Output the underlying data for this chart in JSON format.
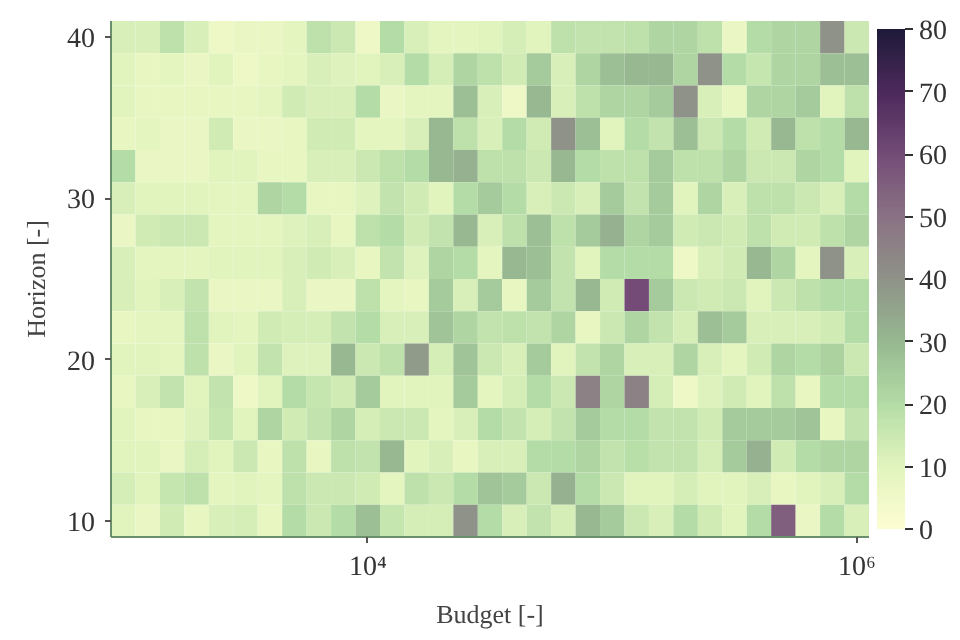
{
  "chart_data": {
    "type": "heatmap",
    "xlabel": "Budget [-]",
    "ylabel": "Horizon [-]",
    "log": "x",
    "x": [
      1000,
      1259,
      1585,
      1995,
      2512,
      3162,
      3981,
      5012,
      6310,
      7943,
      10000,
      12589,
      15849,
      19953,
      25119,
      31623,
      39811,
      50119,
      63096,
      79433,
      100000,
      125893,
      158489,
      199526,
      251189,
      316228,
      398107,
      501187,
      630957,
      794328,
      1000000
    ],
    "y": [
      40,
      38,
      36,
      34,
      32,
      30,
      28,
      26,
      24,
      22,
      20,
      18,
      16,
      14,
      12,
      10
    ],
    "cells": [
      [
        12,
        12,
        18,
        12,
        6,
        7,
        7,
        9,
        18,
        15,
        6,
        20,
        12,
        9,
        9,
        10,
        13,
        10,
        18,
        17,
        17,
        18,
        22,
        22,
        18,
        7,
        20,
        22,
        22,
        40,
        15
      ],
      [
        10,
        8,
        9,
        7,
        10,
        6,
        8,
        9,
        12,
        11,
        10,
        12,
        20,
        13,
        22,
        18,
        14,
        25,
        12,
        22,
        28,
        30,
        30,
        22,
        40,
        20,
        16,
        22,
        22,
        28,
        28
      ],
      [
        10,
        8,
        8,
        8,
        8,
        8,
        9,
        14,
        12,
        12,
        20,
        7,
        9,
        9,
        28,
        12,
        6,
        30,
        12,
        18,
        22,
        22,
        25,
        40,
        12,
        8,
        22,
        22,
        25,
        10,
        18
      ],
      [
        8,
        9,
        7,
        7,
        14,
        7,
        7,
        8,
        14,
        14,
        9,
        9,
        12,
        30,
        18,
        12,
        20,
        14,
        40,
        28,
        10,
        20,
        17,
        28,
        15,
        20,
        14,
        30,
        18,
        20,
        30
      ],
      [
        20,
        7,
        7,
        7,
        10,
        10,
        8,
        8,
        12,
        12,
        15,
        18,
        20,
        30,
        32,
        18,
        18,
        15,
        30,
        20,
        18,
        18,
        25,
        18,
        18,
        22,
        15,
        15,
        22,
        20,
        10
      ],
      [
        12,
        10,
        10,
        10,
        9,
        9,
        22,
        20,
        8,
        8,
        11,
        17,
        14,
        10,
        20,
        25,
        20,
        12,
        15,
        12,
        25,
        17,
        25,
        10,
        22,
        12,
        18,
        18,
        15,
        12,
        20
      ],
      [
        7,
        14,
        15,
        15,
        9,
        9,
        9,
        11,
        12,
        8,
        18,
        20,
        14,
        17,
        30,
        12,
        18,
        28,
        18,
        25,
        32,
        22,
        25,
        14,
        15,
        14,
        18,
        14,
        14,
        18,
        22
      ],
      [
        12,
        9,
        9,
        9,
        10,
        10,
        10,
        12,
        14,
        12,
        8,
        17,
        11,
        22,
        20,
        9,
        30,
        28,
        17,
        10,
        20,
        20,
        20,
        6,
        12,
        14,
        30,
        22,
        9,
        40,
        12
      ],
      [
        12,
        10,
        12,
        17,
        7,
        7,
        7,
        12,
        7,
        7,
        18,
        9,
        8,
        25,
        12,
        25,
        8,
        25,
        17,
        30,
        14,
        60,
        25,
        15,
        14,
        15,
        10,
        15,
        18,
        20,
        20
      ],
      [
        8,
        9,
        9,
        18,
        10,
        9,
        14,
        13,
        13,
        17,
        20,
        12,
        12,
        27,
        22,
        17,
        18,
        17,
        22,
        8,
        15,
        22,
        17,
        13,
        28,
        25,
        12,
        12,
        12,
        14,
        20
      ],
      [
        10,
        10,
        9,
        18,
        7,
        10,
        17,
        11,
        11,
        30,
        15,
        18,
        38,
        13,
        27,
        15,
        12,
        25,
        10,
        17,
        22,
        12,
        12,
        22,
        12,
        9,
        14,
        22,
        20,
        23,
        15
      ],
      [
        8,
        12,
        17,
        10,
        17,
        6,
        10,
        20,
        16,
        14,
        25,
        10,
        10,
        10,
        25,
        9,
        13,
        20,
        15,
        45,
        22,
        45,
        13,
        6,
        11,
        14,
        10,
        18,
        8,
        20,
        20
      ],
      [
        10,
        8,
        8,
        11,
        16,
        10,
        22,
        14,
        17,
        22,
        13,
        15,
        15,
        9,
        12,
        20,
        17,
        13,
        17,
        25,
        20,
        20,
        17,
        17,
        14,
        25,
        25,
        25,
        27,
        8,
        17
      ],
      [
        10,
        10,
        7,
        13,
        10,
        15,
        8,
        18,
        8,
        18,
        17,
        30,
        10,
        12,
        8,
        12,
        12,
        20,
        20,
        22,
        17,
        19,
        17,
        17,
        13,
        25,
        32,
        14,
        20,
        22,
        22
      ],
      [
        13,
        10,
        16,
        18,
        9,
        10,
        9,
        18,
        15,
        15,
        14,
        9,
        18,
        15,
        20,
        27,
        25,
        15,
        32,
        20,
        15,
        10,
        10,
        13,
        10,
        10,
        12,
        8,
        10,
        12,
        20
      ],
      [
        10,
        7,
        14,
        8,
        12,
        13,
        8,
        20,
        15,
        20,
        28,
        16,
        13,
        13,
        40,
        20,
        12,
        17,
        13,
        30,
        25,
        15,
        12,
        20,
        14,
        10,
        20,
        55,
        7,
        20,
        12
      ]
    ],
    "xlim": [
      891,
      1122018
    ],
    "xticks": [
      {
        "value": 10000,
        "label": "10⁴"
      },
      {
        "value": 1000000,
        "label": "10⁶"
      }
    ],
    "ylim": [
      9,
      41
    ],
    "yticks": [
      10,
      20,
      30,
      40
    ],
    "clim": [
      0,
      80
    ],
    "cticks": [
      0,
      10,
      20,
      30,
      40,
      50,
      60,
      70,
      80
    ],
    "grid": false
  }
}
